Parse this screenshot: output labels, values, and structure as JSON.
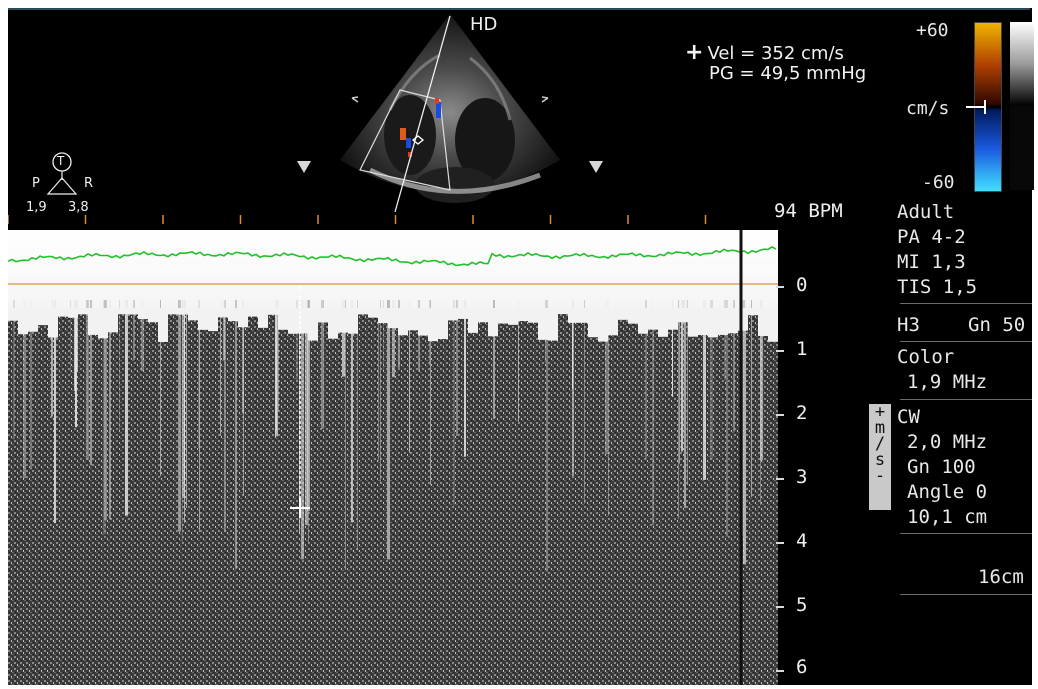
{
  "measurement": {
    "velocity": "Vel = 352 cm/s",
    "gradient": "PG = 49,5 mmHg"
  },
  "image_labels": {
    "hd": "HD",
    "bpm": "94 BPM"
  },
  "probe": {
    "marker": "T",
    "left": "P",
    "right": "R",
    "left_value": "1,9",
    "right_value": "3,8"
  },
  "color_scale": {
    "max": "+60",
    "min": "-60",
    "unit": "cm/s"
  },
  "velocity_axis": {
    "labels": [
      "0",
      "1",
      "2",
      "3",
      "4",
      "5",
      "6"
    ],
    "unit_tag": [
      "+",
      "m",
      "/",
      "s",
      "-"
    ]
  },
  "settings": {
    "adult": "Adult",
    "probe": "PA 4-2",
    "mi": "MI 1,3",
    "tis": "TIS 1,5",
    "h3": "H3",
    "gain2d": "Gn 50",
    "color_title": "Color",
    "color_freq": "1,9 MHz",
    "cw_title": "CW",
    "cw_freq": "2,0 MHz",
    "cw_gain": "Gn 100",
    "cw_angle": "Angle 0",
    "cw_depth": "10,1 cm",
    "depth": "16cm"
  },
  "colors": {
    "ecg_trace": "#22c02a",
    "baseline": "#e0a060",
    "caliper": "#ffffff",
    "color_positive": "#f0b400",
    "color_negative": "#1a5adf"
  }
}
